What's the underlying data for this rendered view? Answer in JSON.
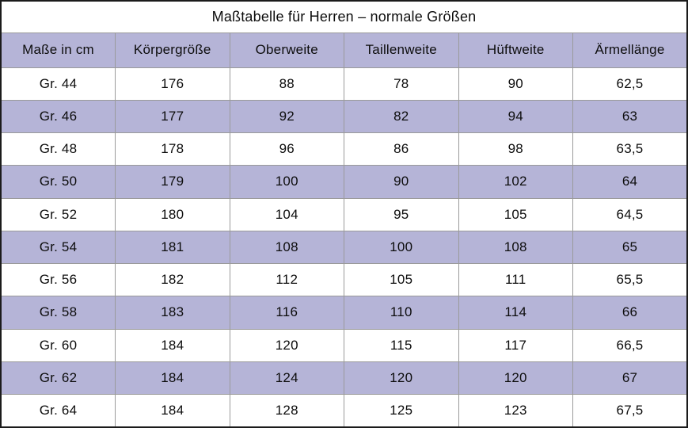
{
  "table": {
    "title": "Maßtabelle für Herren – normale Größen",
    "columns": [
      "Maße in cm",
      "Körpergröße",
      "Oberweite",
      "Taillenweite",
      "Hüftweite",
      "Ärmellänge"
    ],
    "rows": [
      [
        "Gr. 44",
        "176",
        "88",
        "78",
        "90",
        "62,5"
      ],
      [
        "Gr. 46",
        "177",
        "92",
        "82",
        "94",
        "63"
      ],
      [
        "Gr. 48",
        "178",
        "96",
        "86",
        "98",
        "63,5"
      ],
      [
        "Gr. 50",
        "179",
        "100",
        "90",
        "102",
        "64"
      ],
      [
        "Gr. 52",
        "180",
        "104",
        "95",
        "105",
        "64,5"
      ],
      [
        "Gr. 54",
        "181",
        "108",
        "100",
        "108",
        "65"
      ],
      [
        "Gr. 56",
        "182",
        "112",
        "105",
        "111",
        "65,5"
      ],
      [
        "Gr. 58",
        "183",
        "116",
        "110",
        "114",
        "66"
      ],
      [
        "Gr. 60",
        "184",
        "120",
        "115",
        "117",
        "66,5"
      ],
      [
        "Gr. 62",
        "184",
        "124",
        "120",
        "120",
        "67"
      ],
      [
        "Gr. 64",
        "184",
        "128",
        "125",
        "123",
        "67,5"
      ]
    ],
    "colors": {
      "stripe": "#b5b4d7",
      "grid": "#9a9a9a",
      "outer_border": "#1b1b1b",
      "text": "#0d0d0d",
      "background": "#ffffff"
    }
  },
  "chart_data": {
    "type": "table",
    "title": "Maßtabelle für Herren – normale Größen",
    "columns": [
      "Maße in cm",
      "Körpergröße",
      "Oberweite",
      "Taillenweite",
      "Hüftweite",
      "Ärmellänge"
    ],
    "rows": [
      [
        "Gr. 44",
        176,
        88,
        78,
        90,
        62.5
      ],
      [
        "Gr. 46",
        177,
        92,
        82,
        94,
        63
      ],
      [
        "Gr. 48",
        178,
        96,
        86,
        98,
        63.5
      ],
      [
        "Gr. 50",
        179,
        100,
        90,
        102,
        64
      ],
      [
        "Gr. 52",
        180,
        104,
        95,
        105,
        64.5
      ],
      [
        "Gr. 54",
        181,
        108,
        100,
        108,
        65
      ],
      [
        "Gr. 56",
        182,
        112,
        105,
        111,
        65.5
      ],
      [
        "Gr. 58",
        183,
        116,
        110,
        114,
        66
      ],
      [
        "Gr. 60",
        184,
        120,
        115,
        117,
        66.5
      ],
      [
        "Gr. 62",
        184,
        124,
        120,
        120,
        67
      ],
      [
        "Gr. 64",
        184,
        128,
        125,
        123,
        67.5
      ]
    ],
    "notes": "Values in cm; decimal comma used in last column; rows striped white/lavender"
  }
}
